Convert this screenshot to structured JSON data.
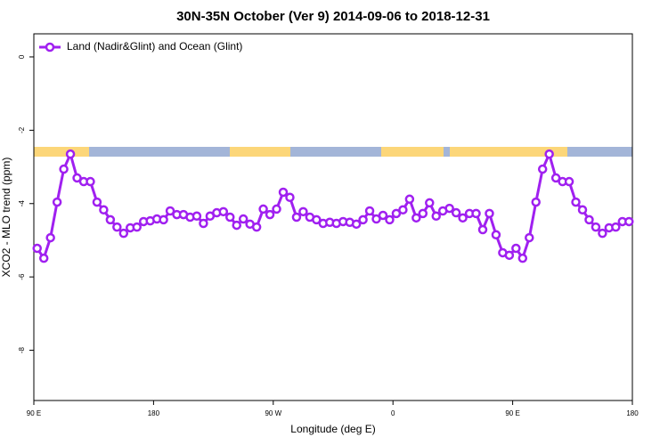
{
  "chart_data": {
    "type": "line",
    "title": "30N-35N October (Ver 9)   2014-09-06 to 2018-12-31",
    "x_label": "Longitude (deg E)",
    "y_label": "XCO2 - MLO trend (ppm)",
    "xlim": [
      90,
      540
    ],
    "ylim": [
      -9.37,
      0.63
    ],
    "xticks": [
      {
        "value": 90,
        "label": "90 E"
      },
      180,
      {
        "value": 270,
        "label": "90 W"
      },
      {
        "value": 360,
        "label": "0"
      },
      {
        "value": 450,
        "label": "90 E"
      },
      {
        "value": 540,
        "label": "180"
      }
    ],
    "yticks": [
      0,
      -2,
      -4,
      -6,
      -8
    ],
    "grid": false,
    "legend": "top-left",
    "x": [
      92.5,
      97.5,
      102.5,
      107.5,
      112.5,
      117.5,
      122.5,
      127.5,
      132.5,
      137.5,
      142.5,
      147.5,
      152.5,
      157.5,
      162.5,
      167.5,
      172.5,
      177.5,
      182.5,
      187.5,
      192.5,
      197.5,
      202.5,
      207.5,
      212.5,
      217.5,
      222.5,
      227.5,
      232.5,
      237.5,
      242.5,
      247.5,
      252.5,
      257.5,
      262.5,
      267.5,
      272.5,
      277.5,
      282.5,
      287.5,
      292.5,
      297.5,
      302.5,
      307.5,
      312.5,
      317.5,
      322.5,
      327.5,
      332.5,
      337.5,
      342.5,
      347.5,
      352.5,
      357.5,
      362.5,
      367.5,
      372.5,
      377.5,
      382.5,
      387.5,
      392.5,
      397.5,
      402.5,
      407.5,
      412.5,
      417.5,
      422.5,
      427.5,
      432.5,
      437.5,
      442.5,
      447.5,
      452.5,
      457.5,
      462.5,
      467.5,
      472.5,
      477.5,
      482.5,
      487.5,
      492.5,
      497.5,
      502.5,
      507.5,
      512.5,
      517.5,
      522.5,
      527.5,
      532.5,
      537.5
    ],
    "series": [
      {
        "name": "Land (Nadir&Glint) and Ocean (Glint)",
        "color": "#a020f0",
        "values": [
          -5.22,
          -5.49,
          -4.93,
          -3.96,
          -3.06,
          -2.65,
          -3.3,
          -3.4,
          -3.4,
          -3.96,
          -4.17,
          -4.44,
          -4.64,
          -4.81,
          -4.66,
          -4.64,
          -4.49,
          -4.47,
          -4.42,
          -4.44,
          -4.2,
          -4.3,
          -4.3,
          -4.37,
          -4.34,
          -4.54,
          -4.34,
          -4.25,
          -4.22,
          -4.37,
          -4.59,
          -4.42,
          -4.56,
          -4.64,
          -4.15,
          -4.3,
          -4.15,
          -3.69,
          -3.83,
          -4.37,
          -4.22,
          -4.37,
          -4.44,
          -4.54,
          -4.51,
          -4.54,
          -4.49,
          -4.51,
          -4.56,
          -4.44,
          -4.2,
          -4.42,
          -4.32,
          -4.44,
          -4.27,
          -4.17,
          -3.88,
          -4.39,
          -4.27,
          -3.98,
          -4.34,
          -4.2,
          -4.13,
          -4.25,
          -4.39,
          -4.27,
          -4.27,
          -4.71,
          -4.27,
          -4.85,
          -5.34,
          -5.41,
          -5.22,
          -5.49,
          -4.93,
          -3.96,
          -3.06,
          -2.65,
          -3.3,
          -3.4,
          -3.4,
          -3.96,
          -4.17,
          -4.44,
          -4.64,
          -4.81,
          -4.66,
          -4.64,
          -4.49,
          -4.49
        ]
      }
    ]
  }
}
